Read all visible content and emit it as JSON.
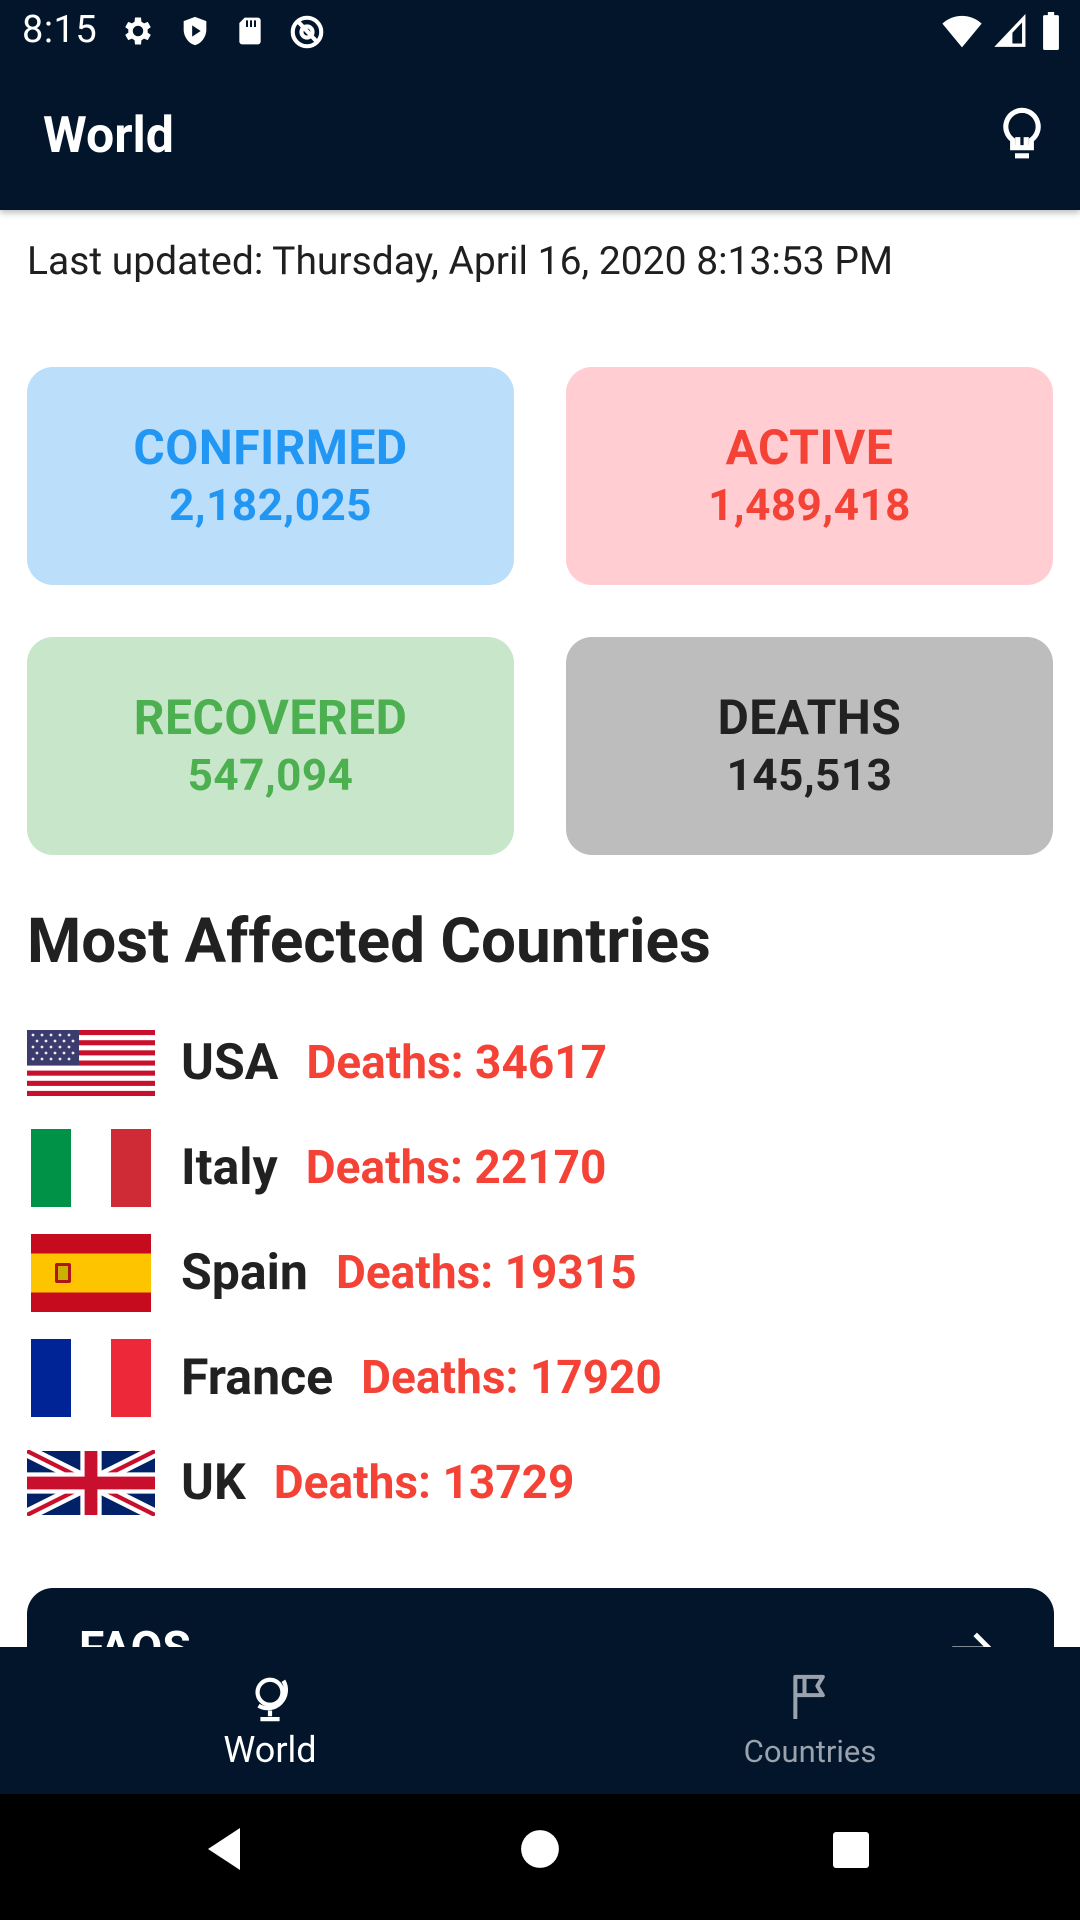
{
  "status_bar": {
    "time": "8:15",
    "left_icons": [
      "gear-icon",
      "shield-play-icon",
      "sd-card-icon",
      "at-sign-icon"
    ],
    "right_icons": [
      "wifi-icon",
      "cell-signal-icon",
      "battery-icon"
    ]
  },
  "app_bar": {
    "title": "World",
    "action_icon": "lightbulb-icon"
  },
  "last_updated": "Last updated: Thursday, April 16, 2020 8:13:53 PM",
  "stats": {
    "confirmed": {
      "label": "CONFIRMED",
      "value": "2,182,025",
      "color": "#2196f3",
      "bg": "#bbdefb"
    },
    "active": {
      "label": "ACTIVE",
      "value": "1,489,418",
      "color": "#f44336",
      "bg": "#ffcdd2"
    },
    "recovered": {
      "label": "RECOVERED",
      "value": "547,094",
      "color": "#4caf50",
      "bg": "#c8e6c9"
    },
    "deaths": {
      "label": "DEATHS",
      "value": "145,513",
      "color": "#212121",
      "bg": "#bdbdbd"
    }
  },
  "most_affected": {
    "title": "Most Affected Countries",
    "countries": [
      {
        "name": "USA",
        "deaths": "Deaths: 34617",
        "flag": "usa-flag"
      },
      {
        "name": "Italy",
        "deaths": "Deaths: 22170",
        "flag": "italy-flag"
      },
      {
        "name": "Spain",
        "deaths": "Deaths: 19315",
        "flag": "spain-flag"
      },
      {
        "name": "France",
        "deaths": "Deaths: 17920",
        "flag": "france-flag"
      },
      {
        "name": "UK",
        "deaths": "Deaths: 13729",
        "flag": "uk-flag"
      }
    ]
  },
  "faqs": {
    "label": "FAQS",
    "icon": "arrow-right-icon"
  },
  "bottom_nav": {
    "items": [
      {
        "label": "World",
        "icon": "globe-icon",
        "active": true
      },
      {
        "label": "Countries",
        "icon": "flag-icon",
        "active": false
      }
    ]
  },
  "system_nav": [
    "back-icon",
    "home-icon",
    "recents-icon"
  ],
  "colors": {
    "primary_dark": "#02152a",
    "death_red": "#f44336"
  }
}
